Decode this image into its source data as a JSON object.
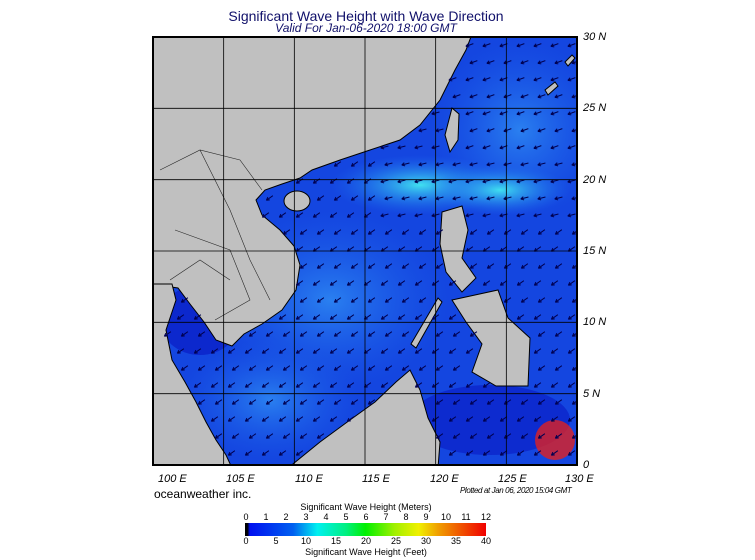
{
  "title": "Significant Wave Height with Wave Direction",
  "subtitle": "Valid For Jan-06-2020 18:00 GMT",
  "lat_labels": [
    "30 N",
    "25 N",
    "20 N",
    "15 N",
    "10 N",
    "5 N",
    "0"
  ],
  "lon_labels": [
    "100 E",
    "105 E",
    "110 E",
    "115 E",
    "120 E",
    "125 E",
    "130 E"
  ],
  "map_extent": {
    "lon": [
      100,
      130
    ],
    "lat": [
      0,
      30
    ]
  },
  "credit": "oceanweather inc.",
  "plotted": "Plotted at Jan 06, 2020 15:04 GMT",
  "colorbar": {
    "title_top": "Significant Wave Height (Meters)",
    "meters": [
      "0",
      "1",
      "2",
      "3",
      "4",
      "5",
      "6",
      "7",
      "8",
      "9",
      "10",
      "11",
      "12"
    ],
    "feet": [
      "0",
      "5",
      "10",
      "15",
      "20",
      "25",
      "30",
      "35",
      "40"
    ],
    "title_bottom": "Significant Wave Height (Feet)"
  },
  "colors": {
    "land": "#c0c0c0",
    "sea_low": "#0a28d8",
    "sea_mid": "#1e70f0",
    "sea_high": "#30d8f0",
    "arrow": "#000060"
  }
}
